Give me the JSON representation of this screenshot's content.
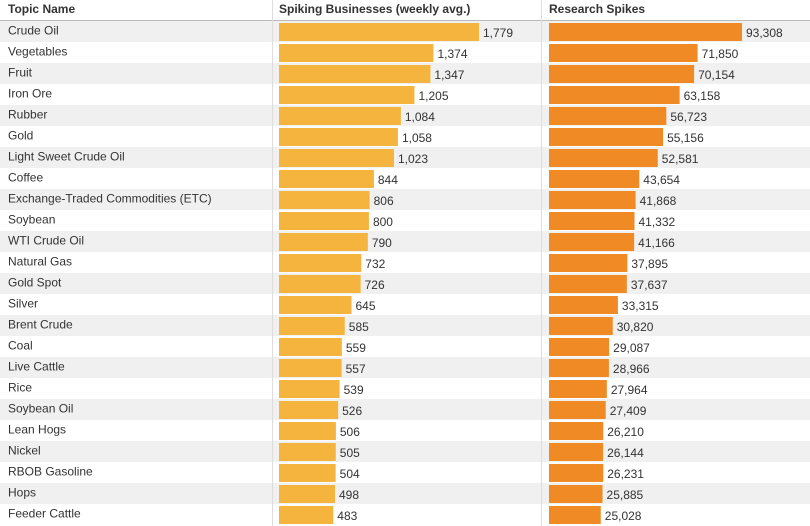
{
  "chart_data": {
    "type": "bar",
    "category_header": "Topic Name",
    "categories": [
      "Crude Oil",
      "Vegetables",
      "Fruit",
      "Iron Ore",
      "Rubber",
      "Gold",
      "Light Sweet Crude Oil",
      "Coffee",
      "Exchange-Traded Commodities (ETC)",
      "Soybean",
      "WTI Crude Oil",
      "Natural Gas",
      "Gold Spot",
      "Silver",
      "Brent Crude",
      "Coal",
      "Live Cattle",
      "Rice",
      "Soybean Oil",
      "Lean Hogs",
      "Nickel",
      "RBOB Gasoline",
      "Hops",
      "Feeder Cattle"
    ],
    "series": [
      {
        "name": "Spiking Businesses (weekly avg.)",
        "color": "#f5b43e",
        "values": [
          1779,
          1374,
          1347,
          1205,
          1084,
          1058,
          1023,
          844,
          806,
          800,
          790,
          732,
          726,
          645,
          585,
          559,
          557,
          539,
          526,
          506,
          505,
          504,
          498,
          483
        ],
        "value_labels": [
          "1,779",
          "1,374",
          "1,347",
          "1,205",
          "1,084",
          "1,058",
          "1,023",
          "844",
          "806",
          "800",
          "790",
          "732",
          "726",
          "645",
          "585",
          "559",
          "557",
          "539",
          "526",
          "506",
          "505",
          "504",
          "498",
          "483"
        ]
      },
      {
        "name": "Research Spikes",
        "color": "#ef8a24",
        "values": [
          93308,
          71850,
          70154,
          63158,
          56723,
          55156,
          52581,
          43654,
          41868,
          41332,
          41166,
          37895,
          37637,
          33315,
          30820,
          29087,
          28966,
          27964,
          27409,
          26210,
          26144,
          26231,
          25885,
          25028
        ],
        "value_labels": [
          "93,308",
          "71,850",
          "70,154",
          "63,158",
          "56,723",
          "55,156",
          "52,581",
          "43,654",
          "41,868",
          "41,332",
          "41,166",
          "37,895",
          "37,637",
          "33,315",
          "30,820",
          "29,087",
          "28,966",
          "27,964",
          "27,409",
          "26,210",
          "26,144",
          "26,231",
          "25,885",
          "25,028"
        ]
      }
    ]
  }
}
